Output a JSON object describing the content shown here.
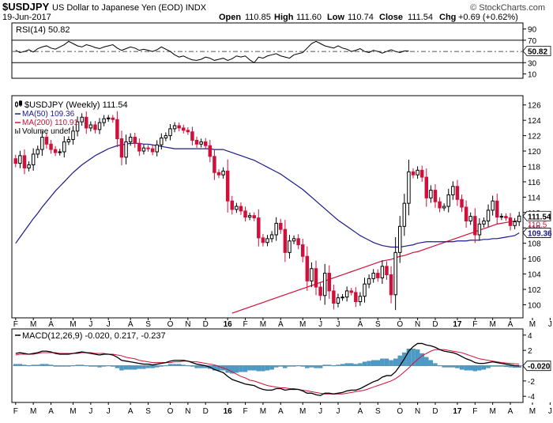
{
  "header": {
    "symbol": "$USDJPY",
    "description": "US Dollar to Japanese Yen (EOD)  INDX",
    "watermark": "© StockCharts.com",
    "date": "19-Jun-2017",
    "quote": {
      "open_label": "Open",
      "open": "110.85",
      "high_label": "High",
      "high": "111.60",
      "low_label": "Low",
      "low": "110.74",
      "close_label": "Close",
      "close": "111.54",
      "chg_label": "Chg",
      "chg": "+0.69 (+0.62%)"
    }
  },
  "colors": {
    "up_candle": "#000000",
    "down_candle": "#d0103a",
    "ma50": "#1a1a8c",
    "ma200": "#d0103a",
    "macd_line": "#000000",
    "signal_line": "#d0103a",
    "histogram": "#4a9cc8",
    "rsi_line": "#000000",
    "last_price_tag": "#000000",
    "ma50_tag": "#1a1a8c"
  },
  "chart_data": [
    {
      "type": "line",
      "title": "RSI(14) 50.82",
      "y_ticks": [
        90,
        70,
        50,
        30,
        10
      ],
      "ylim": [
        5,
        98
      ],
      "reference_lines": [
        70,
        50,
        30
      ],
      "last_value_tag": "50.82",
      "series": [
        {
          "name": "RSI(14)",
          "values": [
            52,
            48,
            50,
            53,
            49,
            55,
            58,
            60,
            56,
            54,
            58,
            62,
            68,
            64,
            60,
            58,
            62,
            60,
            57,
            55,
            58,
            60,
            62,
            56,
            52,
            55,
            58,
            56,
            52,
            54,
            52,
            50,
            53,
            58,
            54,
            50,
            44,
            40,
            42,
            38,
            35,
            34,
            36,
            40,
            38,
            34,
            36,
            38,
            34,
            37,
            42,
            40,
            42,
            35,
            30,
            40,
            38,
            42,
            44,
            46,
            42,
            40,
            38,
            44,
            46,
            48,
            56,
            64,
            68,
            64,
            60,
            58,
            56,
            60,
            56,
            54,
            50,
            52,
            55,
            50,
            48,
            52,
            50,
            47,
            50,
            53,
            50,
            48,
            51,
            50.82
          ]
        }
      ]
    },
    {
      "type": "candlestick",
      "legend": [
        {
          "label": "$USDJPY (Weekly) 111.54",
          "style": "candle"
        },
        {
          "label": "MA(50) 109.36",
          "style": "line"
        },
        {
          "label": "MA(200) 110.91",
          "style": "line"
        },
        {
          "label": "Volume undef",
          "style": "bars"
        }
      ],
      "y_ticks": [
        100,
        102,
        104,
        106,
        108,
        110,
        112,
        114,
        116,
        118,
        120,
        122,
        124,
        126
      ],
      "ylim": [
        98.5,
        127
      ],
      "grid": false,
      "last_price_tag": "111.54",
      "ma50_tag": "109.36",
      "extra_tag": "110.5",
      "x_labels": [
        "F",
        "M",
        "A",
        "M",
        "J",
        "J",
        "A",
        "S",
        "O",
        "N",
        "D",
        "16",
        "F",
        "M",
        "A",
        "M",
        "J",
        "J",
        "A",
        "S",
        "O",
        "N",
        "D",
        "17",
        "F",
        "M",
        "A",
        "M",
        "J"
      ],
      "x_label_weeks": [
        0,
        4,
        8,
        13,
        17,
        21,
        26,
        30,
        35,
        39,
        43,
        48,
        52,
        56,
        60,
        65,
        69,
        73,
        78,
        82,
        87,
        91,
        95,
        100,
        104,
        108,
        112,
        117,
        121
      ],
      "series": [
        {
          "name": "close",
          "values": [
            118.4,
            119.4,
            117.8,
            118.2,
            119.6,
            120.2,
            121.8,
            120.9,
            120.2,
            119.8,
            119.9,
            121.2,
            121.5,
            122.6,
            123.8,
            124.4,
            123.0,
            123.4,
            122.8,
            123.7,
            124.2,
            124.3,
            124.1,
            121.6,
            119.2,
            121.2,
            121.8,
            121.0,
            120.0,
            120.4,
            120.3,
            119.9,
            120.8,
            121.7,
            122.0,
            122.9,
            123.3,
            123.0,
            122.7,
            122.5,
            121.4,
            120.9,
            121.2,
            120.7,
            119.3,
            117.2,
            116.9,
            117.4,
            113.5,
            112.4,
            112.8,
            112.2,
            111.4,
            111.6,
            111.3,
            108.7,
            108.1,
            108.6,
            109.1,
            110.6,
            109.8,
            106.8,
            108.3,
            108.6,
            107.8,
            106.3,
            103.1,
            104.7,
            102.3,
            101.2,
            104.1,
            101.8,
            100.2,
            100.9,
            101.0,
            101.8,
            101.6,
            100.4,
            101.1,
            102.7,
            103.4,
            104.1,
            103.5,
            105.0,
            103.9,
            101.3,
            106.8,
            110.2,
            113.2,
            117.3,
            116.9,
            117.5,
            116.6,
            113.9,
            114.9,
            113.4,
            112.6,
            112.8,
            114.3,
            115.4,
            113.7,
            112.7,
            110.9,
            111.5,
            109.1,
            110.5,
            110.9,
            112.3,
            113.5,
            111.4,
            111.5,
            111.3,
            110.3,
            110.8,
            111.54
          ]
        },
        {
          "name": "MA(50)",
          "values": [
            108.0,
            108.8,
            109.6,
            110.4,
            111.2,
            111.9,
            112.7,
            113.4,
            114.1,
            114.8,
            115.4,
            116.0,
            116.6,
            117.2,
            117.7,
            118.2,
            118.6,
            119.0,
            119.4,
            119.7,
            120.0,
            120.3,
            120.5,
            120.7,
            120.8,
            120.9,
            121.0,
            121.0,
            121.0,
            120.9,
            120.9,
            120.8,
            120.7,
            120.6,
            120.5,
            120.4,
            120.3,
            120.3,
            120.3,
            120.3,
            120.3,
            120.3,
            120.3,
            120.3,
            120.3,
            120.2,
            120.2,
            120.2,
            120.0,
            119.8,
            119.6,
            119.4,
            119.2,
            119.0,
            118.8,
            118.5,
            118.2,
            117.9,
            117.6,
            117.3,
            117.0,
            116.6,
            116.2,
            115.8,
            115.4,
            115.0,
            114.5,
            114.0,
            113.5,
            113.0,
            112.5,
            112.0,
            111.5,
            111.0,
            110.6,
            110.2,
            109.8,
            109.4,
            109.0,
            108.7,
            108.4,
            108.1,
            107.9,
            107.7,
            107.6,
            107.5,
            107.5,
            107.5,
            107.6,
            107.7,
            107.8,
            108.0,
            108.1,
            108.2,
            108.2,
            108.2,
            108.2,
            108.2,
            108.2,
            108.2,
            108.3,
            108.3,
            108.3,
            108.4,
            108.4,
            108.4,
            108.5,
            108.5,
            108.6,
            108.6,
            108.7,
            108.8,
            108.9,
            109.0,
            109.36
          ]
        },
        {
          "name": "MA(200)",
          "values": [
            null,
            null,
            null,
            null,
            null,
            null,
            null,
            null,
            null,
            null,
            null,
            null,
            null,
            null,
            null,
            null,
            null,
            null,
            null,
            null,
            null,
            null,
            null,
            null,
            null,
            null,
            null,
            null,
            null,
            98.9,
            99.1,
            99.3,
            99.5,
            99.7,
            99.9,
            100.1,
            100.3,
            100.5,
            100.7,
            100.9,
            101.1,
            101.3,
            101.5,
            101.7,
            101.9,
            102.1,
            102.3,
            102.5,
            102.7,
            102.9,
            103.1,
            103.3,
            103.5,
            103.7,
            103.9,
            104.1,
            104.3,
            104.5,
            104.7,
            104.9,
            105.1,
            105.3,
            105.5,
            105.7,
            105.8,
            105.9,
            106.1,
            106.3,
            106.4,
            106.6,
            106.8,
            106.9,
            107.1,
            107.3,
            107.5,
            107.7,
            107.9,
            108.1,
            108.3,
            108.5,
            108.7,
            108.9,
            109.1,
            109.3,
            109.5,
            109.7,
            109.9,
            110.1,
            110.3,
            110.5,
            110.6,
            110.7,
            110.8,
            110.9,
            110.91
          ]
        }
      ]
    },
    {
      "type": "line",
      "title": "MACD(12,26,9) -0.020, 0.217, -0.237",
      "y_ticks": [
        4,
        2,
        0,
        -2,
        -4
      ],
      "ylim": [
        -4.6,
        4.6
      ],
      "last_value_tag": "-0.020",
      "series": [
        {
          "name": "MACD(12,26,9)",
          "values": [
            1.6,
            1.7,
            1.6,
            1.5,
            1.6,
            1.7,
            1.9,
            1.9,
            1.8,
            1.6,
            1.5,
            1.5,
            1.5,
            1.6,
            1.7,
            1.8,
            1.7,
            1.6,
            1.5,
            1.4,
            1.5,
            1.5,
            1.4,
            1.1,
            0.7,
            0.6,
            0.5,
            0.4,
            0.3,
            0.2,
            0.2,
            0.1,
            0.2,
            0.3,
            0.4,
            0.6,
            0.7,
            0.7,
            0.7,
            0.6,
            0.4,
            0.2,
            0.1,
            0.0,
            -0.2,
            -0.5,
            -0.7,
            -0.9,
            -1.4,
            -1.8,
            -2.0,
            -2.2,
            -2.4,
            -2.5,
            -2.6,
            -2.9,
            -3.1,
            -3.2,
            -3.2,
            -3.0,
            -3.0,
            -3.2,
            -3.1,
            -3.1,
            -3.1,
            -3.3,
            -3.6,
            -3.6,
            -3.8,
            -3.9,
            -3.6,
            -3.6,
            -3.7,
            -3.6,
            -3.5,
            -3.3,
            -3.2,
            -3.2,
            -3.0,
            -2.7,
            -2.4,
            -2.1,
            -1.9,
            -1.5,
            -1.3,
            -1.3,
            -0.8,
            0.0,
            0.9,
            1.9,
            2.5,
            2.9,
            2.9,
            2.7,
            2.6,
            2.4,
            2.1,
            1.9,
            1.8,
            1.7,
            1.5,
            1.2,
            0.9,
            0.7,
            0.4,
            0.3,
            0.3,
            0.4,
            0.5,
            0.4,
            0.3,
            0.2,
            0.1,
            0.0,
            -0.02
          ]
        },
        {
          "name": "Signal",
          "values": [
            1.4,
            1.5,
            1.5,
            1.5,
            1.5,
            1.6,
            1.7,
            1.7,
            1.7,
            1.7,
            1.6,
            1.6,
            1.6,
            1.6,
            1.6,
            1.7,
            1.7,
            1.7,
            1.6,
            1.6,
            1.6,
            1.5,
            1.5,
            1.4,
            1.3,
            1.1,
            1.0,
            0.9,
            0.7,
            0.6,
            0.5,
            0.4,
            0.4,
            0.4,
            0.4,
            0.4,
            0.5,
            0.5,
            0.6,
            0.6,
            0.5,
            0.5,
            0.4,
            0.3,
            0.2,
            0.1,
            -0.1,
            -0.3,
            -0.5,
            -0.8,
            -1.1,
            -1.4,
            -1.6,
            -1.9,
            -2.0,
            -2.2,
            -2.4,
            -2.6,
            -2.7,
            -2.8,
            -2.9,
            -2.9,
            -3.0,
            -3.0,
            -3.1,
            -3.2,
            -3.3,
            -3.4,
            -3.5,
            -3.6,
            -3.7,
            -3.7,
            -3.7,
            -3.7,
            -3.7,
            -3.6,
            -3.5,
            -3.4,
            -3.3,
            -3.2,
            -3.0,
            -2.8,
            -2.6,
            -2.4,
            -2.2,
            -2.0,
            -1.7,
            -1.3,
            -0.8,
            -0.3,
            0.3,
            0.8,
            1.3,
            1.6,
            1.9,
            2.1,
            2.1,
            2.1,
            2.0,
            1.9,
            1.8,
            1.7,
            1.5,
            1.3,
            1.1,
            0.9,
            0.8,
            0.7,
            0.6,
            0.5,
            0.4,
            0.35,
            0.3,
            0.25,
            0.217
          ]
        },
        {
          "name": "Histogram",
          "values": [
            0.2,
            0.2,
            0.1,
            0.0,
            0.1,
            0.1,
            0.2,
            0.2,
            0.1,
            -0.1,
            -0.1,
            -0.1,
            -0.1,
            0.0,
            0.1,
            0.1,
            0.0,
            -0.1,
            -0.1,
            -0.2,
            -0.1,
            0.0,
            -0.1,
            -0.3,
            -0.6,
            -0.5,
            -0.5,
            -0.5,
            -0.4,
            -0.4,
            -0.3,
            -0.3,
            -0.2,
            -0.1,
            0.0,
            0.2,
            0.2,
            0.2,
            0.1,
            0.0,
            -0.1,
            -0.3,
            -0.3,
            -0.3,
            -0.4,
            -0.6,
            -0.6,
            -0.6,
            -0.9,
            -1.0,
            -0.9,
            -0.8,
            -0.8,
            -0.6,
            -0.6,
            -0.7,
            -0.7,
            -0.6,
            -0.5,
            -0.2,
            -0.1,
            -0.3,
            -0.1,
            -0.1,
            0.0,
            -0.1,
            -0.3,
            -0.2,
            -0.3,
            -0.3,
            0.1,
            0.1,
            0.0,
            0.1,
            0.2,
            0.3,
            0.3,
            0.2,
            0.3,
            0.5,
            0.6,
            0.7,
            0.7,
            0.9,
            0.9,
            0.7,
            0.9,
            1.3,
            1.7,
            2.2,
            2.2,
            2.1,
            1.6,
            1.1,
            0.7,
            0.3,
            0.0,
            -0.2,
            -0.2,
            -0.2,
            -0.3,
            -0.5,
            -0.6,
            -0.6,
            -0.7,
            -0.6,
            -0.5,
            -0.3,
            -0.1,
            -0.1,
            -0.1,
            -0.15,
            -0.2,
            -0.25,
            -0.237
          ]
        }
      ]
    }
  ]
}
